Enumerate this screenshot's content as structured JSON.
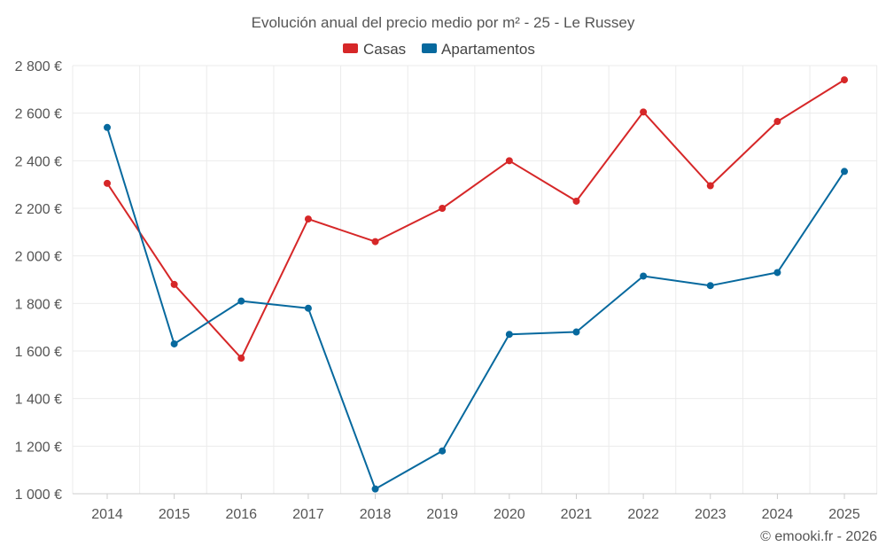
{
  "chart_data": {
    "type": "line",
    "title": "Evolución anual del precio medio por m² - 25 - Le Russey",
    "categories": [
      "2014",
      "2015",
      "2016",
      "2017",
      "2018",
      "2019",
      "2020",
      "2021",
      "2022",
      "2023",
      "2024",
      "2025"
    ],
    "series": [
      {
        "name": "Casas",
        "color": "#d62728",
        "values": [
          2305,
          1880,
          1570,
          2155,
          2060,
          2200,
          2400,
          2230,
          2605,
          2295,
          2565,
          2740
        ]
      },
      {
        "name": "Apartamentos",
        "color": "#07699e",
        "values": [
          2540,
          1630,
          1810,
          1780,
          1020,
          1180,
          1670,
          1680,
          1915,
          1875,
          1930,
          2355
        ]
      }
    ],
    "yticks": [
      1000,
      1200,
      1400,
      1600,
      1800,
      2000,
      2200,
      2400,
      2600,
      2800
    ],
    "ytick_labels": [
      "1 000 €",
      "1 200 €",
      "1 400 €",
      "1 600 €",
      "1 800 €",
      "2 000 €",
      "2 200 €",
      "2 400 €",
      "2 600 €",
      "2 800 €"
    ],
    "ylim": [
      1000,
      2800
    ],
    "grid": true,
    "legend_position": "top-center"
  },
  "credit": "© emooki.fr - 2026"
}
